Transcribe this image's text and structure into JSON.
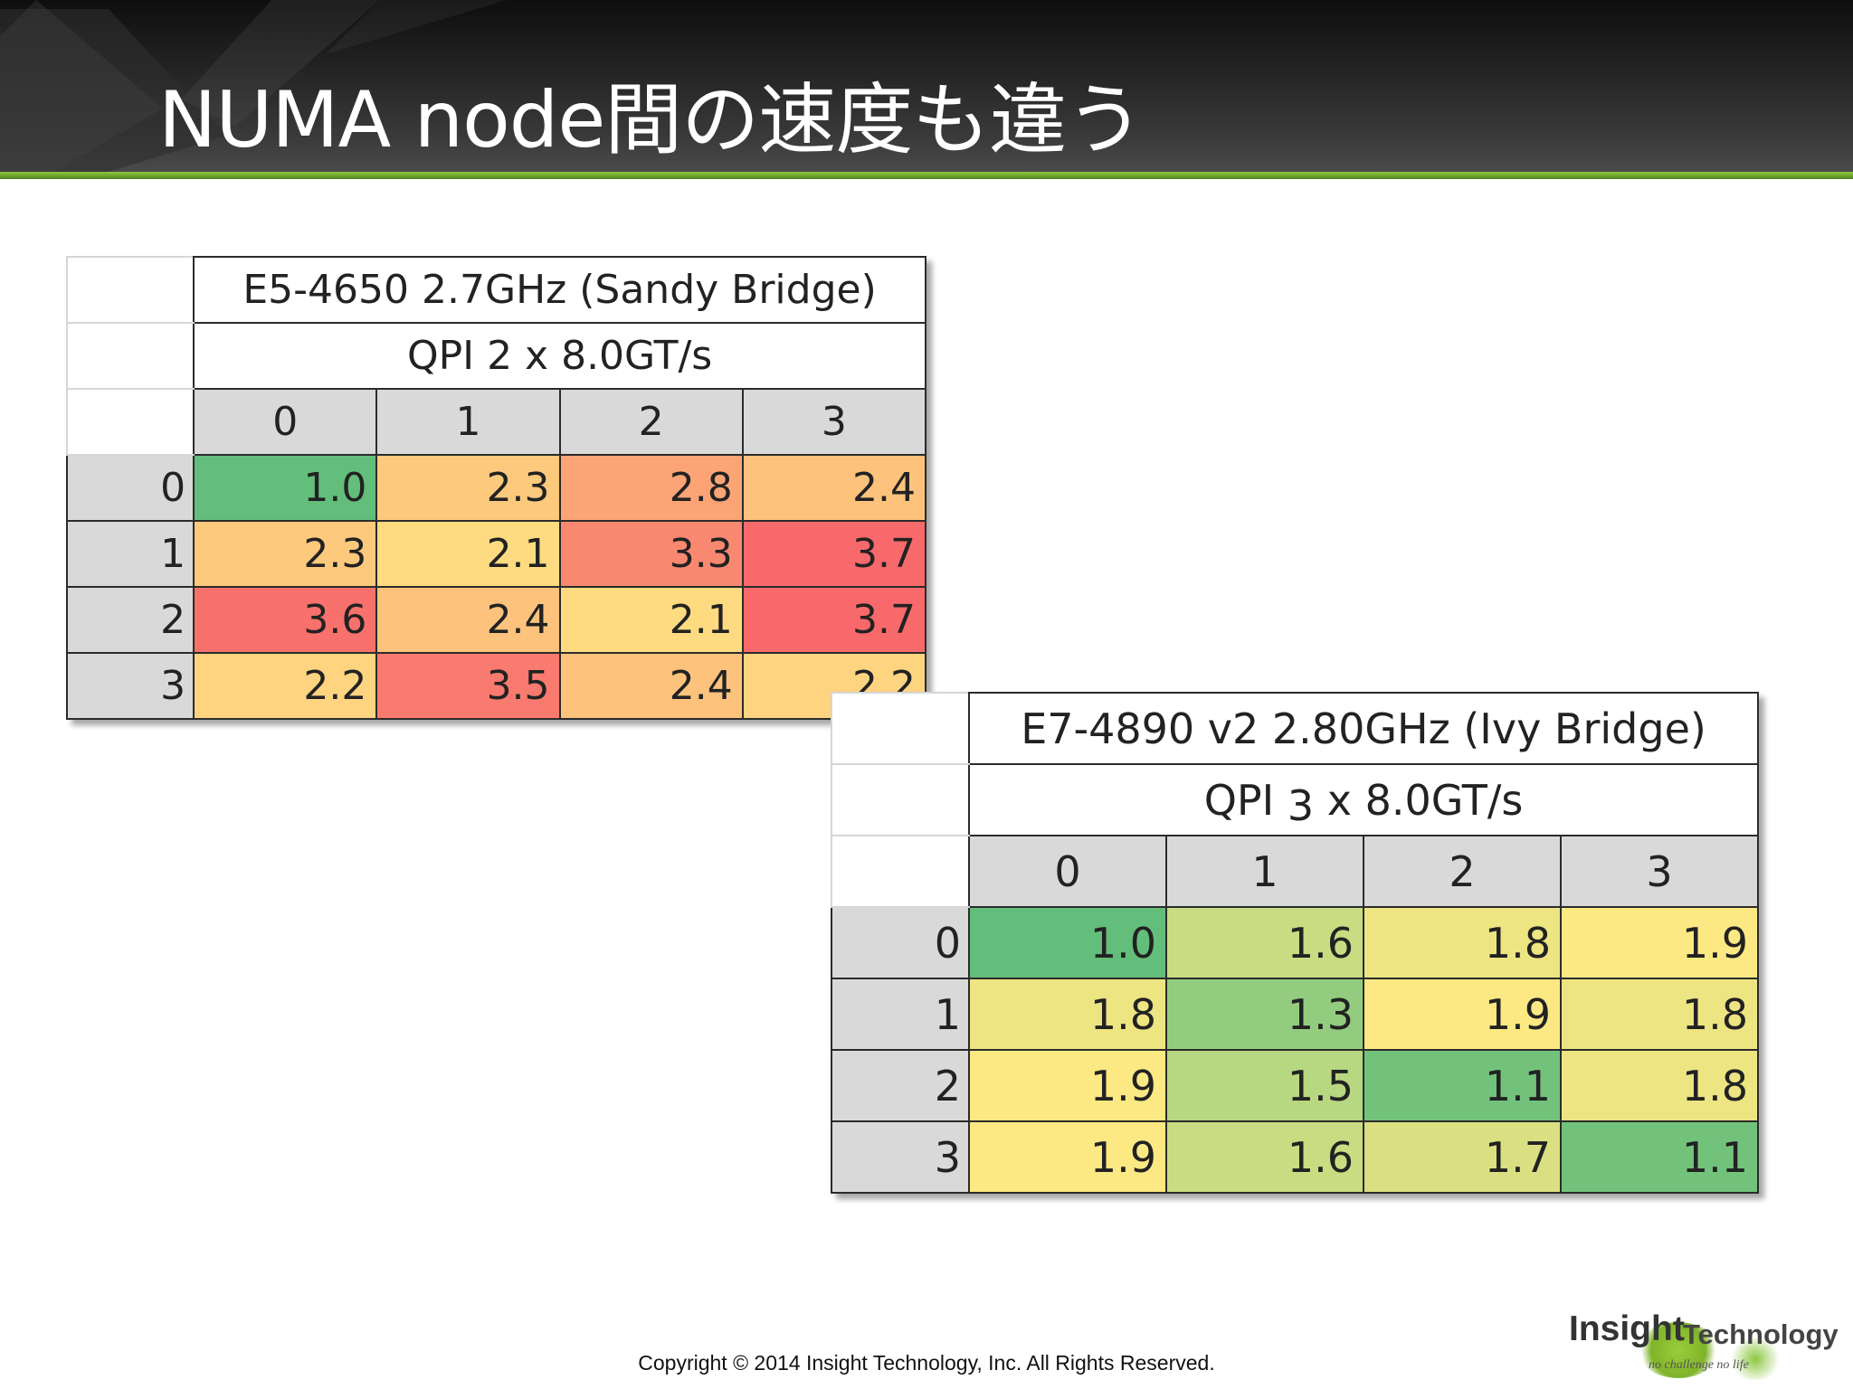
{
  "title": "NUMA node間の速度も違う",
  "table_sandy": {
    "cpu": "E5-4650 2.7GHz  (Sandy Bridge)",
    "qpi": "QPI 2 x 8.0GT/s",
    "col_headers": [
      "0",
      "1",
      "2",
      "3"
    ],
    "rows": [
      {
        "node": "0",
        "values": [
          "1.0",
          "2.3",
          "2.8",
          "2.4"
        ],
        "colors": [
          "#63be7b",
          "#fdc97d",
          "#fca476",
          "#fdc37c"
        ]
      },
      {
        "node": "1",
        "values": [
          "2.3",
          "2.1",
          "3.3",
          "3.7"
        ],
        "colors": [
          "#fdc97d",
          "#fedb80",
          "#f98870",
          "#f8696b"
        ]
      },
      {
        "node": "2",
        "values": [
          "3.6",
          "2.4",
          "2.1",
          "3.7"
        ],
        "colors": [
          "#f8716c",
          "#fdc37c",
          "#fedb80",
          "#f8696b"
        ]
      },
      {
        "node": "3",
        "values": [
          "2.2",
          "3.5",
          "2.4",
          "2.2"
        ],
        "colors": [
          "#fed480",
          "#f97a6e",
          "#fdc37c",
          "#fed480"
        ]
      }
    ]
  },
  "table_ivy": {
    "cpu": "E7-4890 v2 2.80GHz  (Ivy Bridge)",
    "qpi_prefix": "QPI ",
    "qpi_num": "3",
    "qpi_suffix": " x 8.0GT/s",
    "col_headers": [
      "0",
      "1",
      "2",
      "3"
    ],
    "rows": [
      {
        "node": "0",
        "values": [
          "1.0",
          "1.6",
          "1.8",
          "1.9"
        ],
        "colors": [
          "#63be7b",
          "#c9dc81",
          "#ece582",
          "#fde983"
        ]
      },
      {
        "node": "1",
        "values": [
          "1.8",
          "1.3",
          "1.9",
          "1.8"
        ],
        "colors": [
          "#ece582",
          "#93cc7e",
          "#fde983",
          "#ece582"
        ]
      },
      {
        "node": "2",
        "values": [
          "1.9",
          "1.5",
          "1.1",
          "1.8"
        ],
        "colors": [
          "#fde983",
          "#b7d780",
          "#73c27c",
          "#ece582"
        ]
      },
      {
        "node": "3",
        "values": [
          "1.9",
          "1.6",
          "1.7",
          "1.1"
        ],
        "colors": [
          "#fde983",
          "#c9dc81",
          "#dae081",
          "#73c27c"
        ]
      }
    ]
  },
  "footer": {
    "copyright": "Copyright © 2014 Insight Technology, Inc. All Rights Reserved."
  },
  "logo": {
    "word1": "Insight",
    "word2": "Technology",
    "tagline": "no challenge no life"
  }
}
